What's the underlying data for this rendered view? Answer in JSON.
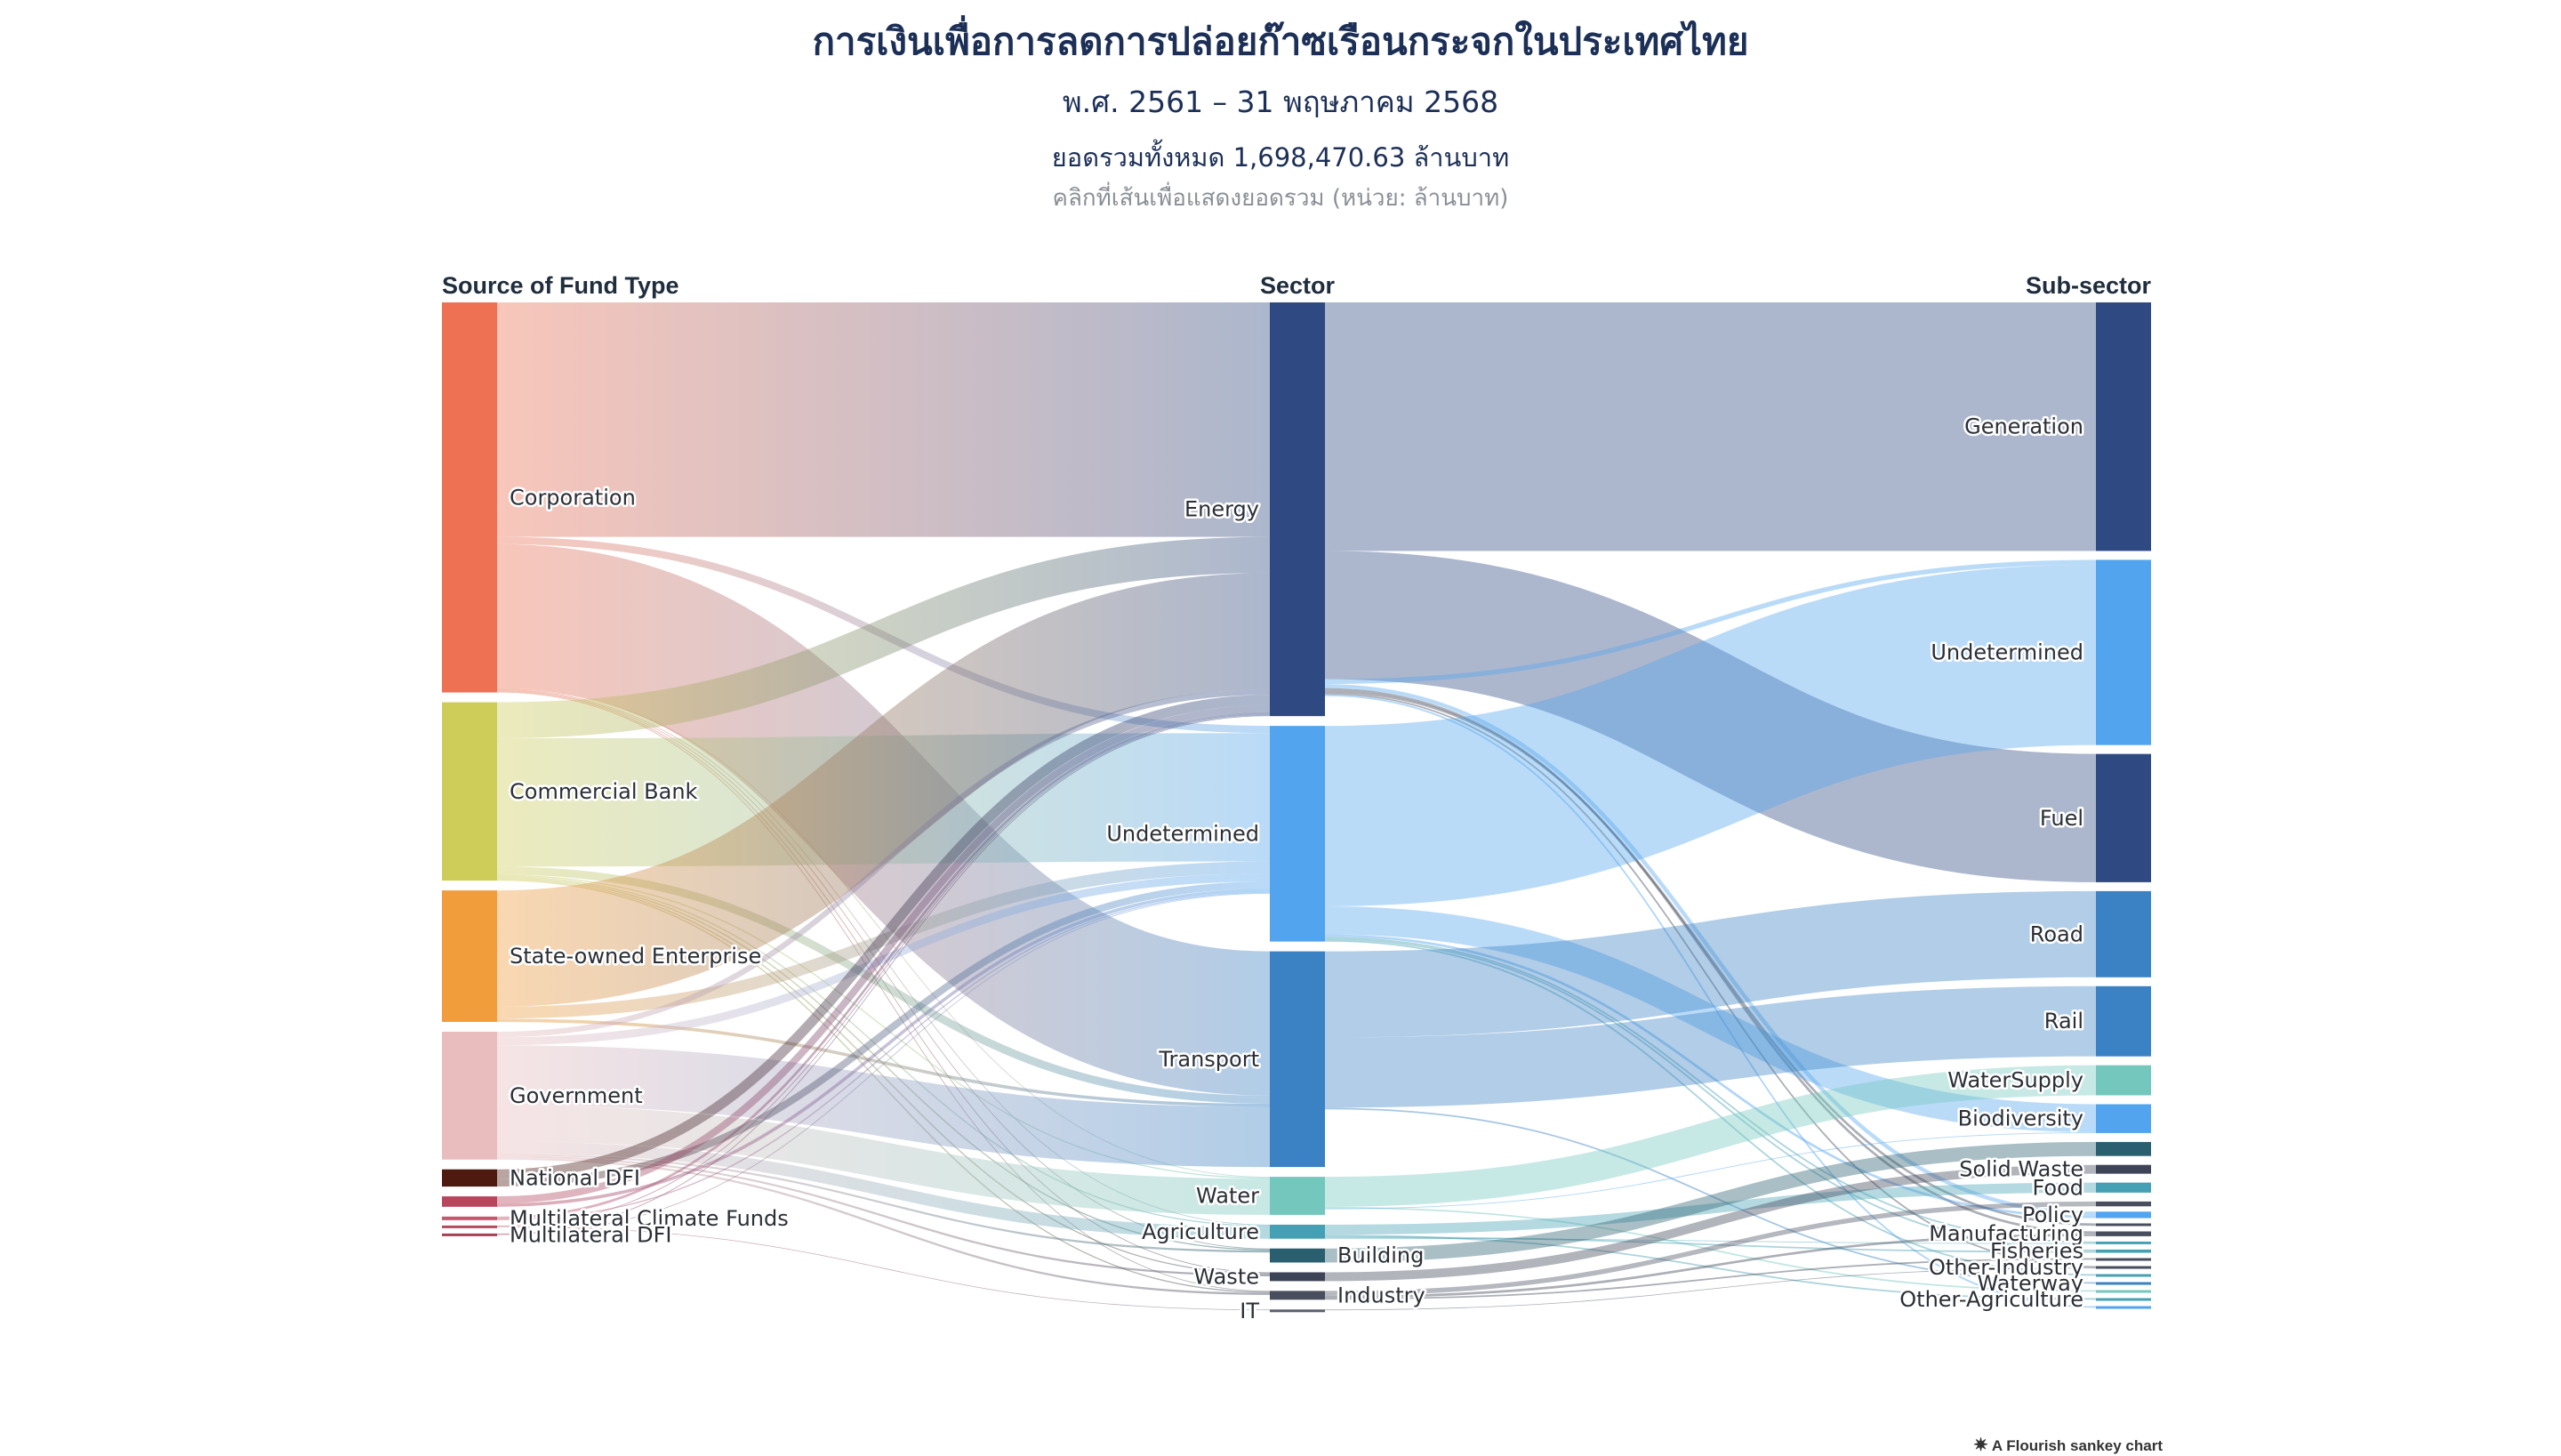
{
  "header": {
    "title": "การเงินเพื่อการลดการปล่อยก๊าซเรือนกระจกในประเทศไทย",
    "subtitle": "พ.ศ. 2561 – 31 พฤษภาคม 2568",
    "total": "ยอดรวมทั้งหมด 1,698,470.63 ล้านบาท",
    "hint": "คลิกที่เส้นเพื่อแสดงยอดรวม (หน่วย: ล้านบาท)"
  },
  "credit": {
    "icon": "flourish-logo-icon",
    "text": "A Flourish sankey chart"
  },
  "chart_data": {
    "type": "sankey",
    "columns": [
      "Source of Fund Type",
      "Sector",
      "Sub-sector"
    ],
    "nodes": [
      {
        "id": "corp",
        "label": "Corporation",
        "col": 0,
        "color": "#ee7153"
      },
      {
        "id": "cb",
        "label": "Commercial Bank",
        "col": 0,
        "color": "#cfcd59"
      },
      {
        "id": "soe",
        "label": "State-owned Enterprise",
        "col": 0,
        "color": "#f19d3c"
      },
      {
        "id": "gov",
        "label": "Government",
        "col": 0,
        "color": "#e9bcbe"
      },
      {
        "id": "ndfi",
        "label": "National DFI",
        "col": 0,
        "color": "#4e1a10"
      },
      {
        "id": "s6",
        "label": "",
        "col": 0,
        "color": "#b8455c"
      },
      {
        "id": "mcf",
        "label": "Multilateral Climate Funds",
        "col": 0,
        "color": "#c9566e"
      },
      {
        "id": "s8",
        "label": "",
        "col": 0,
        "color": "#b24a5e"
      },
      {
        "id": "mdfi",
        "label": "Multilateral DFI",
        "col": 0,
        "color": "#a44055"
      },
      {
        "id": "energy",
        "label": "Energy",
        "col": 1,
        "color": "#2f4a82"
      },
      {
        "id": "undet",
        "label": "Undetermined",
        "col": 1,
        "color": "#52a4ee"
      },
      {
        "id": "transport",
        "label": "Transport",
        "col": 1,
        "color": "#3b82c4"
      },
      {
        "id": "water",
        "label": "Water",
        "col": 1,
        "color": "#74c7bd"
      },
      {
        "id": "agri",
        "label": "Agriculture",
        "col": 1,
        "color": "#46a0b4"
      },
      {
        "id": "building",
        "label": "Building",
        "col": 1,
        "color": "#2a5f6f"
      },
      {
        "id": "waste",
        "label": "Waste",
        "col": 1,
        "color": "#3e4457"
      },
      {
        "id": "industry",
        "label": "Industry",
        "col": 1,
        "color": "#484e5e"
      },
      {
        "id": "it",
        "label": "IT",
        "col": 1,
        "color": "#5a6070"
      },
      {
        "id": "gen",
        "label": "Generation",
        "col": 2,
        "color": "#2f4a82"
      },
      {
        "id": "undet2",
        "label": "Undetermined",
        "col": 2,
        "color": "#52a4ee"
      },
      {
        "id": "fuel",
        "label": "Fuel",
        "col": 2,
        "color": "#2f4a82"
      },
      {
        "id": "road",
        "label": "Road",
        "col": 2,
        "color": "#3b82c4"
      },
      {
        "id": "rail",
        "label": "Rail",
        "col": 2,
        "color": "#3b82c4"
      },
      {
        "id": "ws",
        "label": "WaterSupply",
        "col": 2,
        "color": "#74c7bd"
      },
      {
        "id": "bio",
        "label": "Biodiversity",
        "col": 2,
        "color": "#52a4ee"
      },
      {
        "id": "bld2",
        "label": "",
        "col": 2,
        "color": "#2a5f6f"
      },
      {
        "id": "solid",
        "label": "Solid Waste",
        "col": 2,
        "color": "#3e4457"
      },
      {
        "id": "food",
        "label": "Food",
        "col": 2,
        "color": "#46a0b4"
      },
      {
        "id": "x1",
        "label": "",
        "col": 2,
        "color": "#484e5e"
      },
      {
        "id": "policy",
        "label": "Policy",
        "col": 2,
        "color": "#52a4ee"
      },
      {
        "id": "x2",
        "label": "",
        "col": 2,
        "color": "#484e5e"
      },
      {
        "id": "manu",
        "label": "Manufacturing",
        "col": 2,
        "color": "#484e5e"
      },
      {
        "id": "x3",
        "label": "",
        "col": 2,
        "color": "#46a0b4"
      },
      {
        "id": "fish",
        "label": "Fisheries",
        "col": 2,
        "color": "#46a0b4"
      },
      {
        "id": "x4",
        "label": "",
        "col": 2,
        "color": "#484e5e"
      },
      {
        "id": "oind",
        "label": "Other-Industry",
        "col": 2,
        "color": "#484e5e"
      },
      {
        "id": "x5",
        "label": "",
        "col": 2,
        "color": "#46a0b4"
      },
      {
        "id": "waterway",
        "label": "Waterway",
        "col": 2,
        "color": "#3b82c4"
      },
      {
        "id": "x6",
        "label": "",
        "col": 2,
        "color": "#74c7bd"
      },
      {
        "id": "oagri",
        "label": "Other-Agriculture",
        "col": 2,
        "color": "#46a0b4"
      },
      {
        "id": "x7",
        "label": "",
        "col": 2,
        "color": "#52a4ee"
      }
    ],
    "links": [
      {
        "s": "corp",
        "t": "energy",
        "v": 585
      },
      {
        "s": "corp",
        "t": "undet",
        "v": 18
      },
      {
        "s": "corp",
        "t": "transport",
        "v": 360
      },
      {
        "s": "corp",
        "t": "water",
        "v": 2
      },
      {
        "s": "corp",
        "t": "agri",
        "v": 2
      },
      {
        "s": "corp",
        "t": "building",
        "v": 2
      },
      {
        "s": "corp",
        "t": "waste",
        "v": 2
      },
      {
        "s": "corp",
        "t": "industry",
        "v": 2
      },
      {
        "s": "cb",
        "t": "energy",
        "v": 90
      },
      {
        "s": "cb",
        "t": "undet",
        "v": 320
      },
      {
        "s": "cb",
        "t": "transport",
        "v": 20
      },
      {
        "s": "cb",
        "t": "water",
        "v": 3
      },
      {
        "s": "cb",
        "t": "agri",
        "v": 3
      },
      {
        "s": "cb",
        "t": "building",
        "v": 3
      },
      {
        "s": "cb",
        "t": "waste",
        "v": 3
      },
      {
        "s": "cb",
        "t": "industry",
        "v": 3
      },
      {
        "s": "soe",
        "t": "energy",
        "v": 290
      },
      {
        "s": "soe",
        "t": "undet",
        "v": 30
      },
      {
        "s": "soe",
        "t": "transport",
        "v": 8
      },
      {
        "s": "gov",
        "t": "energy",
        "v": 14
      },
      {
        "s": "gov",
        "t": "undet",
        "v": 20
      },
      {
        "s": "gov",
        "t": "transport",
        "v": 150
      },
      {
        "s": "gov",
        "t": "water",
        "v": 90
      },
      {
        "s": "gov",
        "t": "agri",
        "v": 30
      },
      {
        "s": "gov",
        "t": "building",
        "v": 5
      },
      {
        "s": "gov",
        "t": "waste",
        "v": 5
      },
      {
        "s": "gov",
        "t": "industry",
        "v": 5
      },
      {
        "s": "ndfi",
        "t": "energy",
        "v": 25
      },
      {
        "s": "ndfi",
        "t": "undet",
        "v": 18
      },
      {
        "s": "s6",
        "t": "energy",
        "v": 18
      },
      {
        "s": "s6",
        "t": "undet",
        "v": 8
      },
      {
        "s": "mcf",
        "t": "energy",
        "v": 6
      },
      {
        "s": "mcf",
        "t": "undet",
        "v": 3
      },
      {
        "s": "s8",
        "t": "energy",
        "v": 2
      },
      {
        "s": "s8",
        "t": "it",
        "v": 1
      },
      {
        "s": "mdfi",
        "t": "energy",
        "v": 2
      },
      {
        "s": "mdfi",
        "t": "undet",
        "v": 1
      },
      {
        "s": "energy",
        "t": "gen",
        "v": 620
      },
      {
        "s": "energy",
        "t": "fuel",
        "v": 320
      },
      {
        "s": "energy",
        "t": "undet2",
        "v": 12
      },
      {
        "s": "energy",
        "t": "policy",
        "v": 10
      },
      {
        "s": "energy",
        "t": "manu",
        "v": 6
      },
      {
        "s": "energy",
        "t": "x2",
        "v": 6
      },
      {
        "s": "energy",
        "t": "oind",
        "v": 4
      },
      {
        "s": "energy",
        "t": "x7",
        "v": 4
      },
      {
        "s": "undet",
        "t": "undet2",
        "v": 450
      },
      {
        "s": "undet",
        "t": "bio",
        "v": 70
      },
      {
        "s": "undet",
        "t": "policy",
        "v": 6
      },
      {
        "s": "undet",
        "t": "x3",
        "v": 4
      },
      {
        "s": "undet",
        "t": "fish",
        "v": 4
      },
      {
        "s": "undet",
        "t": "x5",
        "v": 4
      },
      {
        "s": "transport",
        "t": "road",
        "v": 215
      },
      {
        "s": "transport",
        "t": "rail",
        "v": 175
      },
      {
        "s": "transport",
        "t": "waterway",
        "v": 4
      },
      {
        "s": "water",
        "t": "ws",
        "v": 75
      },
      {
        "s": "water",
        "t": "x6",
        "v": 4
      },
      {
        "s": "water",
        "t": "bio",
        "v": 2
      },
      {
        "s": "agri",
        "t": "food",
        "v": 25
      },
      {
        "s": "agri",
        "t": "oagri",
        "v": 4
      },
      {
        "s": "agri",
        "t": "fish",
        "v": 4
      },
      {
        "s": "agri",
        "t": "x3",
        "v": 2
      },
      {
        "s": "building",
        "t": "bld2",
        "v": 35
      },
      {
        "s": "waste",
        "t": "solid",
        "v": 22
      },
      {
        "s": "industry",
        "t": "x1",
        "v": 12
      },
      {
        "s": "industry",
        "t": "manu",
        "v": 6
      },
      {
        "s": "industry",
        "t": "x4",
        "v": 4
      },
      {
        "s": "it",
        "t": "oind",
        "v": 1
      }
    ]
  }
}
